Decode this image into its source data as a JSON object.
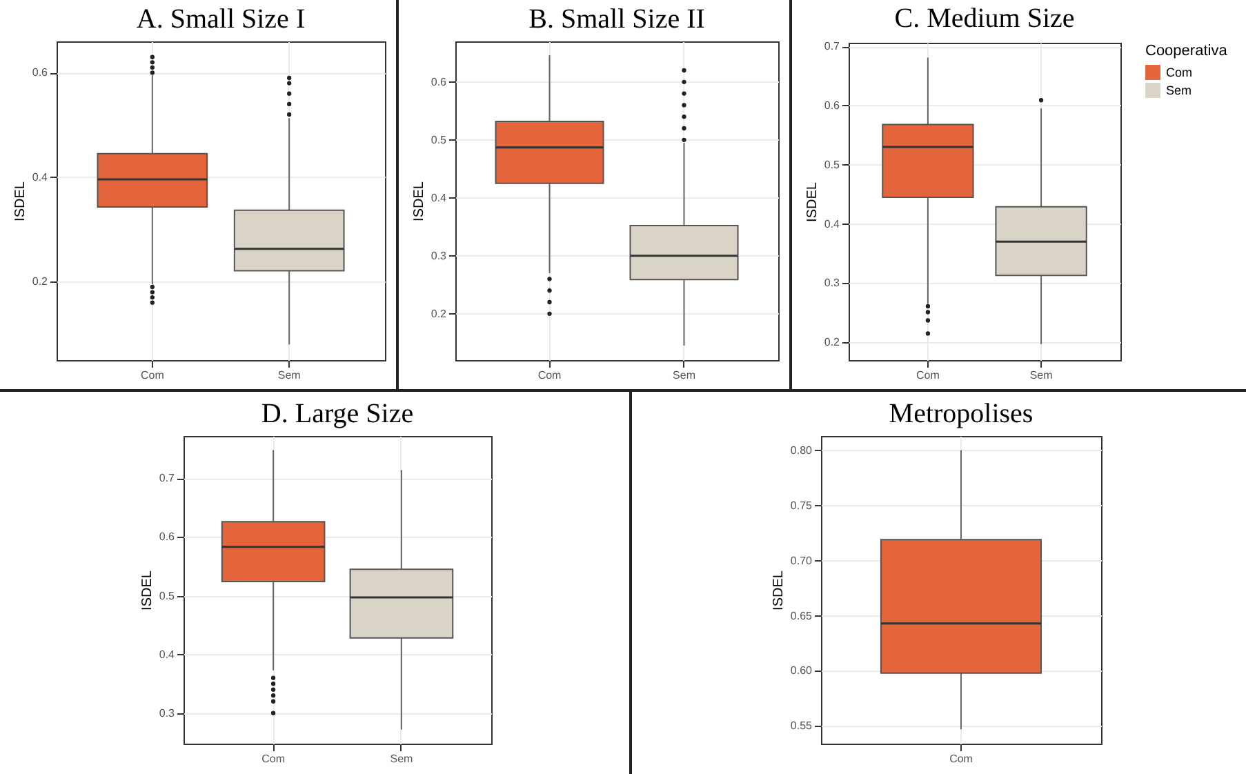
{
  "chart_data": [
    {
      "type": "box",
      "title": "A. Small Size I",
      "ylabel": "ISDEL",
      "categories": [
        "Com",
        "Sem"
      ],
      "colors": [
        "#e4643c",
        "#d9d4c7"
      ],
      "ylim": [
        0.05,
        0.66
      ],
      "yticks": [
        0.2,
        0.4,
        0.6
      ],
      "grid": true,
      "boxes": [
        {
          "low": 0.195,
          "q1": 0.343,
          "median": 0.396,
          "q3": 0.445,
          "high": 0.595,
          "outliers": [
            0.19,
            0.18,
            0.17,
            0.16,
            0.6,
            0.61,
            0.62,
            0.63
          ]
        },
        {
          "low": 0.08,
          "q1": 0.221,
          "median": 0.263,
          "q3": 0.337,
          "high": 0.513,
          "outliers": [
            0.52,
            0.54,
            0.56,
            0.58,
            0.59
          ]
        }
      ]
    },
    {
      "type": "box",
      "title": "B. Small Size II",
      "ylabel": "ISDEL",
      "categories": [
        "Com",
        "Sem"
      ],
      "colors": [
        "#e4643c",
        "#d9d4c7"
      ],
      "ylim": [
        0.12,
        0.67
      ],
      "yticks": [
        0.2,
        0.3,
        0.4,
        0.5,
        0.6
      ],
      "grid": true,
      "boxes": [
        {
          "low": 0.27,
          "q1": 0.425,
          "median": 0.487,
          "q3": 0.532,
          "high": 0.646,
          "outliers": [
            0.26,
            0.24,
            0.22,
            0.2
          ]
        },
        {
          "low": 0.145,
          "q1": 0.259,
          "median": 0.3,
          "q3": 0.352,
          "high": 0.495,
          "outliers": [
            0.5,
            0.52,
            0.54,
            0.56,
            0.58,
            0.6,
            0.62
          ]
        }
      ]
    },
    {
      "type": "box",
      "title": "C. Medium Size",
      "ylabel": "ISDEL",
      "legend_title": "Cooperativa",
      "legend": "right",
      "categories": [
        "Com",
        "Sem"
      ],
      "ylim": [
        0.17,
        0.706
      ],
      "yticks": [
        0.2,
        0.3,
        0.4,
        0.5,
        0.6,
        0.7
      ],
      "grid": true,
      "series": [
        {
          "name": "Com",
          "color": "#e4643c",
          "boxes": [
            {
              "low": 0.265,
              "q1": 0.445,
              "median": 0.53,
              "q3": 0.568,
              "high": 0.681,
              "outliers": [
                0.261,
                0.251,
                0.237,
                0.215
              ]
            },
            null
          ]
        },
        {
          "name": "Sem",
          "color": "#d9d4c7",
          "boxes": [
            null,
            {
              "low": 0.197,
              "q1": 0.313,
              "median": 0.37,
              "q3": 0.429,
              "high": 0.595,
              "outliers": [
                0.609
              ]
            }
          ]
        }
      ]
    },
    {
      "type": "box",
      "title": "D. Large Size",
      "ylabel": "ISDEL",
      "categories": [
        "Com",
        "Sem"
      ],
      "colors": [
        "#e4643c",
        "#d9d4c7"
      ],
      "ylim": [
        0.248,
        0.772
      ],
      "yticks": [
        0.3,
        0.4,
        0.5,
        0.6,
        0.7
      ],
      "grid": true,
      "boxes": [
        {
          "low": 0.373,
          "q1": 0.524,
          "median": 0.583,
          "q3": 0.626,
          "high": 0.748,
          "outliers": [
            0.36,
            0.35,
            0.34,
            0.33,
            0.32,
            0.3
          ]
        },
        {
          "low": 0.272,
          "q1": 0.428,
          "median": 0.497,
          "q3": 0.545,
          "high": 0.714
        }
      ]
    },
    {
      "type": "box",
      "title": "Metropolises",
      "ylabel": "ISDEL",
      "categories": [
        "Com"
      ],
      "colors": [
        "#e4643c"
      ],
      "ylim": [
        0.534,
        0.813
      ],
      "yticks": [
        {
          "value": 0.55,
          "label": "0.55"
        },
        {
          "value": 0.6,
          "label": "0.60"
        },
        {
          "value": 0.65,
          "label": "0.65"
        },
        {
          "value": 0.7,
          "label": "0.70"
        },
        {
          "value": 0.75,
          "label": "0.75"
        },
        {
          "value": 0.8,
          "label": "0.80"
        }
      ],
      "grid": true,
      "boxes": [
        {
          "low": 0.547,
          "q1": 0.598,
          "median": 0.643,
          "q3": 0.719,
          "high": 0.8
        }
      ]
    }
  ]
}
